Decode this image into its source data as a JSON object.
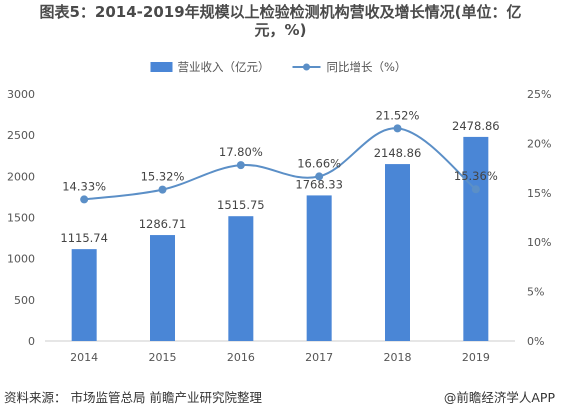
{
  "header": {
    "title_line1": "图表5：2014-2019年规模以上检验检测机构营收及增长情况(单位：亿",
    "title_line2": "元，%)"
  },
  "footer": {
    "source": "资料来源：  市场监管总局 前瞻产业研究院整理",
    "brand": "@前瞻经济学人APP"
  },
  "colors": {
    "bar": "#4a86d6",
    "line": "#5b8fc7",
    "axis": "#cccccc",
    "text": "#444444"
  },
  "chart_data": {
    "type": "bar",
    "categories": [
      "2014",
      "2015",
      "2016",
      "2017",
      "2018",
      "2019"
    ],
    "series": [
      {
        "name": "营业收入（亿元）",
        "type": "bar",
        "axis": "left",
        "values": [
          1115.74,
          1286.71,
          1515.75,
          1768.33,
          2148.86,
          2478.86
        ],
        "labels": [
          "1115.74",
          "1286.71",
          "1515.75",
          "1768.33",
          "2148.86",
          "2478.86"
        ]
      },
      {
        "name": "同比增长（%）",
        "type": "line",
        "axis": "right",
        "values": [
          14.33,
          15.32,
          17.8,
          16.66,
          21.52,
          15.36
        ],
        "labels": [
          "14.33%",
          "15.32%",
          "17.80%",
          "16.66%",
          "21.52%",
          "15.36%"
        ]
      }
    ],
    "y_left": {
      "lim": [
        0,
        3000
      ],
      "ticks": [
        "0",
        "500",
        "1000",
        "1500",
        "2000",
        "2500",
        "3000"
      ]
    },
    "y_right": {
      "lim": [
        0,
        25
      ],
      "ticks": [
        "0%",
        "5%",
        "10%",
        "15%",
        "20%",
        "25%"
      ]
    },
    "legend": "top-center",
    "grid": false
  }
}
